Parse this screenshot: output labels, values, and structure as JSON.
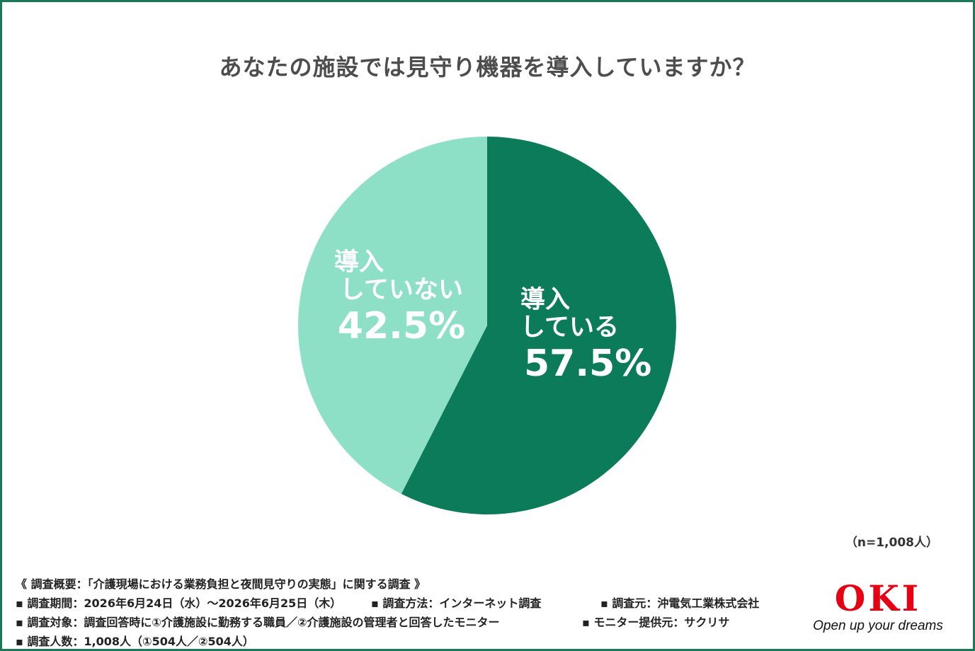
{
  "chart_data": {
    "type": "pie",
    "title": "あなたの施設では見守り機器を導入していますか？",
    "slices": [
      {
        "label_line1": "導入",
        "label_line2": "している",
        "value": 57.5,
        "display": "57.5%",
        "color": "#0b7b5a"
      },
      {
        "label_line1": "導入",
        "label_line2": "していない",
        "value": 42.5,
        "display": "42.5%",
        "color": "#8ddfc6"
      }
    ],
    "note": "（n=1,008人）"
  },
  "survey": {
    "heading": "《 調査概要：「介護現場における業務負担と夜間見守りの実態」に関する調査 》",
    "period": "▪ 調査期間：2026年6月24日（水）～2026年6月25日（木）",
    "method": "▪ 調査方法：インターネット調査",
    "organizer": "▪ 調査元：沖電気工業株式会社",
    "target": "▪ 調査対象：調査回答時に①介護施設に勤務する職員／②介護施設の管理者と回答したモニター",
    "provider": "▪ モニター提供元：サクリサ",
    "count": "▪ 調査人数：1,008人（①504人／②504人）"
  },
  "logo": {
    "mark": "OKI",
    "tagline": "Open up your dreams",
    "color": "#e60012"
  },
  "colors": {
    "border": "#1a7a57",
    "title": "#4d4d4d"
  }
}
